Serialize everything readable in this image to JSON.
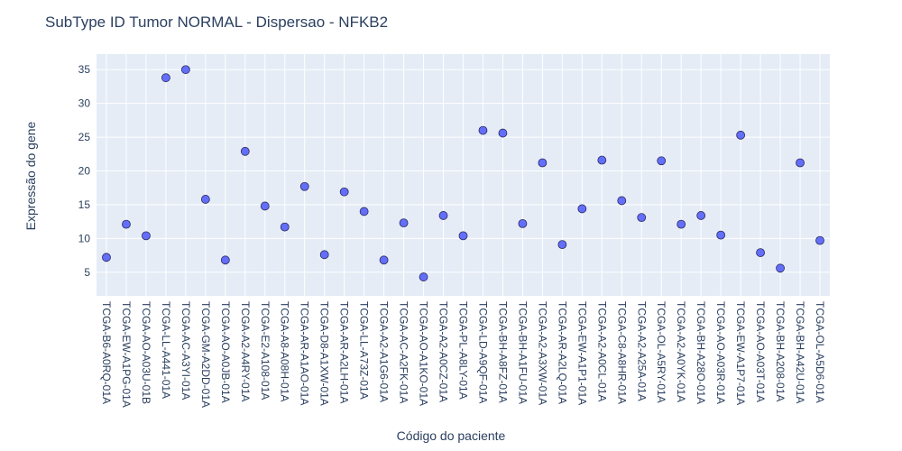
{
  "chart_data": {
    "type": "scatter",
    "title": "SubType ID Tumor NORMAL - Dispersao - NFKB2",
    "xlabel": "Código do paciente",
    "ylabel": "Expressão do gene",
    "ylim": [
      1.5,
      37.3
    ],
    "yticks": [
      5,
      10,
      15,
      20,
      25,
      30,
      35
    ],
    "grid": true,
    "marker_color": "#636efa",
    "marker_edge_color": "#2a2a5a",
    "plot_bg_color": "#e5ecf6",
    "text_color": "#2a3f5f",
    "categories": [
      "TCGA-B6-A0RQ-01A",
      "TCGA-EW-A1PG-01A",
      "TCGA-AO-A03U-01B",
      "TCGA-LL-A441-01A",
      "TCGA-AC-A3YI-01A",
      "TCGA-GM-A2DD-01A",
      "TCGA-AO-A0JB-01A",
      "TCGA-A2-A4RY-01A",
      "TCGA-E2-A108-01A",
      "TCGA-A8-A08H-01A",
      "TCGA-AR-A1AO-01A",
      "TCGA-D8-A1XW-01A",
      "TCGA-AR-A2LH-01A",
      "TCGA-LL-A73Z-01A",
      "TCGA-A2-A1G6-01A",
      "TCGA-AC-A2FK-01A",
      "TCGA-AO-A1KO-01A",
      "TCGA-A2-A0CZ-01A",
      "TCGA-PL-A8LY-01A",
      "TCGA-LD-A9QF-01A",
      "TCGA-BH-A8FZ-01A",
      "TCGA-BH-A1FU-01A",
      "TCGA-A2-A3XW-01A",
      "TCGA-AR-A2LQ-01A",
      "TCGA-EW-A1P1-01A",
      "TCGA-A2-A0CL-01A",
      "TCGA-C8-A8HR-01A",
      "TCGA-A2-A25A-01A",
      "TCGA-OL-A5RY-01A",
      "TCGA-A2-A0YK-01A",
      "TCGA-BH-A28O-01A",
      "TCGA-AO-A03R-01A",
      "TCGA-EW-A1P7-01A",
      "TCGA-AO-A03T-01A",
      "TCGA-BH-A208-01A",
      "TCGA-BH-A42U-01A",
      "TCGA-OL-A5D6-01A"
    ],
    "values": [
      7.2,
      12.1,
      10.4,
      33.8,
      35.0,
      15.8,
      6.8,
      22.9,
      14.8,
      11.7,
      17.7,
      7.6,
      16.9,
      14.0,
      6.8,
      12.3,
      4.3,
      13.4,
      10.4,
      26.0,
      25.6,
      12.2,
      21.2,
      9.1,
      14.4,
      21.6,
      15.6,
      13.1,
      21.5,
      12.1,
      13.4,
      10.5,
      25.3,
      7.9,
      5.6,
      21.2,
      9.7
    ]
  }
}
